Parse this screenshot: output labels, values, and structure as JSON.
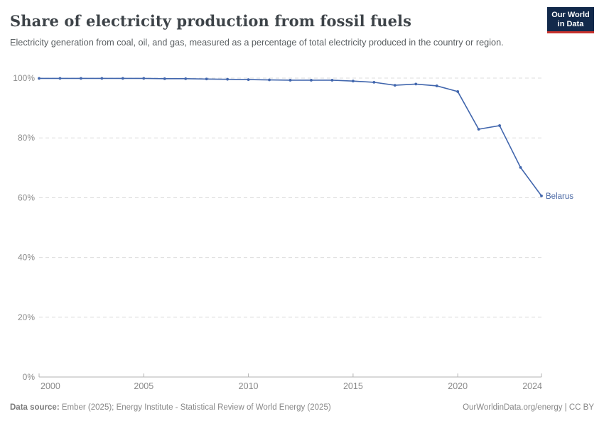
{
  "header": {
    "title": "Share of electricity production from fossil fuels",
    "subtitle": "Electricity generation from coal, oil, and gas, measured as a percentage of total electricity produced in the country or region.",
    "logo": {
      "line1": "Our World",
      "line2": "in Data"
    }
  },
  "chart_data": {
    "type": "line",
    "title": "Share of electricity production from fossil fuels",
    "series": [
      {
        "name": "Belarus",
        "x": [
          2000,
          2001,
          2002,
          2003,
          2004,
          2005,
          2006,
          2007,
          2008,
          2009,
          2010,
          2011,
          2012,
          2013,
          2014,
          2015,
          2016,
          2017,
          2018,
          2019,
          2020,
          2021,
          2022,
          2023,
          2024
        ],
        "values": [
          99.9,
          99.9,
          99.9,
          99.9,
          99.9,
          99.9,
          99.8,
          99.8,
          99.7,
          99.6,
          99.5,
          99.4,
          99.3,
          99.3,
          99.3,
          99.0,
          98.6,
          97.6,
          98.0,
          97.4,
          95.5,
          82.9,
          84.1,
          70.1,
          60.6
        ]
      }
    ],
    "xlabel": "",
    "ylabel": "",
    "xlim": [
      2000,
      2024
    ],
    "ylim": [
      0,
      100
    ],
    "xticks": [
      2000,
      2005,
      2010,
      2015,
      2020,
      2024
    ],
    "yticks": [
      0,
      20,
      40,
      60,
      80,
      100
    ],
    "ytick_suffix": "%",
    "grid": "horizontal-dashed",
    "legend_position": "end-of-line-label",
    "colors": {
      "line": "#4166ad",
      "marker": "#4166ad",
      "series_label": "#4a68a4",
      "grid": "#dcdcdc",
      "axis": "#b3b3b3",
      "tick_text": "#8a8a8a"
    }
  },
  "footer": {
    "datasource_label": "Data source:",
    "datasource_text": " Ember (2025); Energy Institute - Statistical Review of World Energy (2025)",
    "right_text": "OurWorldinData.org/energy | CC BY"
  }
}
